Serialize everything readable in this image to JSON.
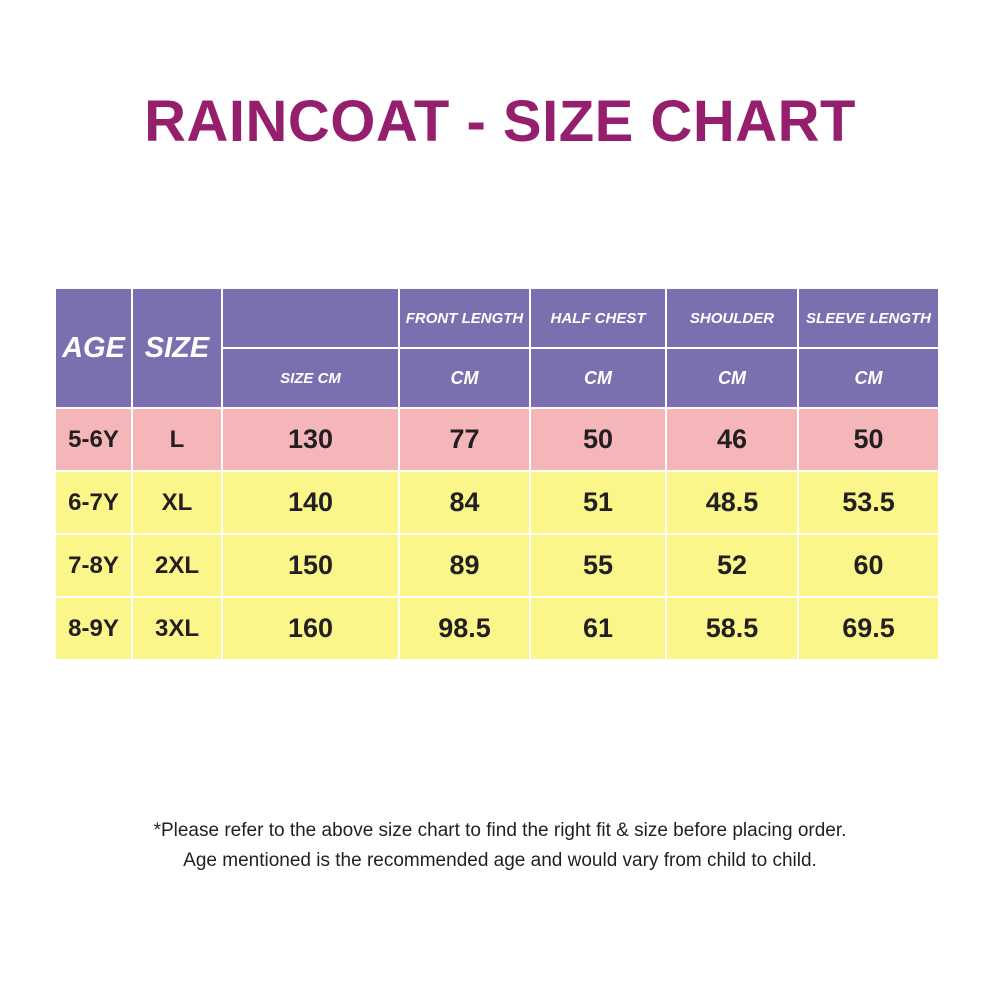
{
  "title": "RAINCOAT - SIZE CHART",
  "colors": {
    "title": "#951f6d",
    "header_bg": "#7b6fb0",
    "first_row_bg": "#f4b6b8",
    "row_bg": "#fbf68a",
    "cell_text": "#231f20"
  },
  "table": {
    "header": {
      "age": "AGE",
      "size": "SIZE",
      "size_cm": "SIZE CM",
      "columns": [
        {
          "label": "FRONT LENGTH",
          "unit": "CM"
        },
        {
          "label": "HALF CHEST",
          "unit": "CM"
        },
        {
          "label": "SHOULDER",
          "unit": "CM"
        },
        {
          "label": "SLEEVE LENGTH",
          "unit": "CM"
        }
      ]
    },
    "rows": [
      {
        "age": "5-6Y",
        "size": "L",
        "size_cm": "130",
        "front_length": "77",
        "half_chest": "50",
        "shoulder": "46",
        "sleeve_length": "50"
      },
      {
        "age": "6-7Y",
        "size": "XL",
        "size_cm": "140",
        "front_length": "84",
        "half_chest": "51",
        "shoulder": "48.5",
        "sleeve_length": "53.5"
      },
      {
        "age": "7-8Y",
        "size": "2XL",
        "size_cm": "150",
        "front_length": "89",
        "half_chest": "55",
        "shoulder": "52",
        "sleeve_length": "60"
      },
      {
        "age": "8-9Y",
        "size": "3XL",
        "size_cm": "160",
        "front_length": "98.5",
        "half_chest": "61",
        "shoulder": "58.5",
        "sleeve_length": "69.5"
      }
    ]
  },
  "notes": [
    "*Please refer to the above size chart to find the right fit & size before placing order.",
    "Age mentioned is the recommended age and would vary from child to child."
  ]
}
